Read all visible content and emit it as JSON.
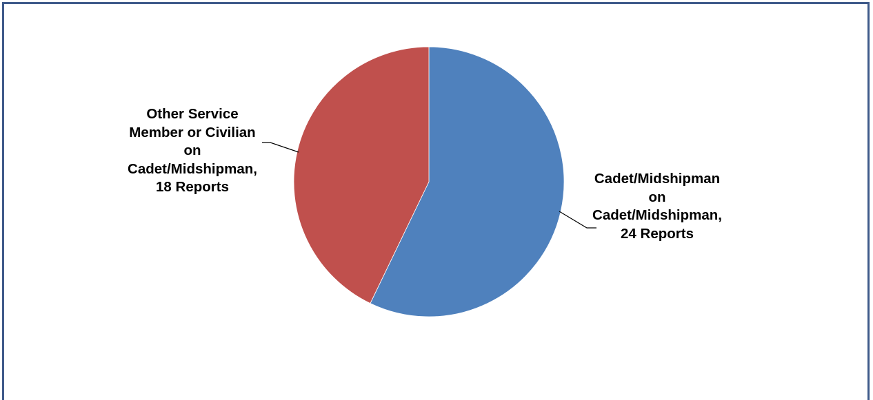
{
  "chart_data": {
    "type": "pie",
    "title": "",
    "slices": [
      {
        "lines": [
          "Cadet/Midshipman",
          "on",
          "Cadet/Midshipman,",
          "24 Reports"
        ],
        "value": 24,
        "color": "#4f81bd"
      },
      {
        "lines": [
          "Other Service",
          "Member or Civilian",
          "on",
          "Cadet/Midshipman,",
          "18 Reports"
        ],
        "value": 18,
        "color": "#c0504d"
      }
    ],
    "start_angle_deg": 0,
    "direction": "clockwise",
    "legend": "none",
    "border_color": "#3f5a8a"
  }
}
